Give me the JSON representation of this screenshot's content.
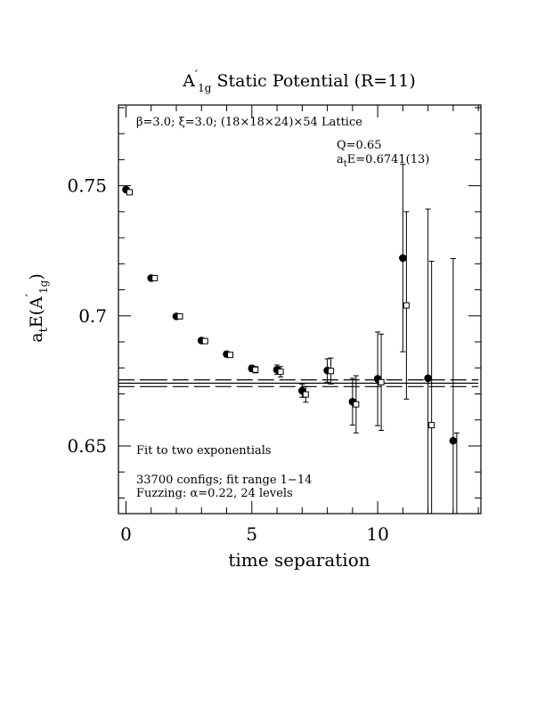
{
  "chart_data": {
    "type": "scatter",
    "title_main": "A",
    "title_prime": "′",
    "title_sub": "1g",
    "title_rest": " Static Potential (R=11)",
    "ylabel_main": "a",
    "ylabel_sub": "t",
    "ylabel_mid": "E(A",
    "ylabel_prime": "′",
    "ylabel_sub2": "1g",
    "ylabel_end": ")",
    "xlabel": "time separation",
    "xlim": [
      -0.3,
      14.1
    ],
    "ylim": [
      0.624,
      0.781
    ],
    "x_ticks": [
      0,
      5,
      10
    ],
    "x_tick_labels": [
      "0",
      "5",
      "10"
    ],
    "y_ticks": [
      0.65,
      0.7,
      0.75
    ],
    "y_tick_labels": [
      "0.65",
      "0.7",
      "0.75"
    ],
    "annotations": {
      "lattice": "β=3.0; ξ=3.0; (18×18×24)×54 Lattice",
      "q_value": "Q=0.65",
      "energy_main": "a",
      "energy_sub": "t",
      "energy_rest": "E=0.6741(13)",
      "fit_note": "Fit to two exponentials",
      "configs": "33700 configs; fit range 1−14",
      "fuzzing": "Fuzzing: α=0.22, 24 levels"
    },
    "series": [
      {
        "marker": "filled-circle",
        "points": [
          {
            "x": 0,
            "y": 0.7485,
            "err": 0.0004
          },
          {
            "x": 1,
            "y": 0.7145,
            "err": 0.0004
          },
          {
            "x": 2,
            "y": 0.6998,
            "err": 0.0005
          },
          {
            "x": 3,
            "y": 0.6905,
            "err": 0.0006
          },
          {
            "x": 4,
            "y": 0.6853,
            "err": 0.0008
          },
          {
            "x": 5,
            "y": 0.6798,
            "err": 0.0012
          },
          {
            "x": 6,
            "y": 0.6793,
            "err": 0.0018
          },
          {
            "x": 7,
            "y": 0.6712,
            "err": 0.0025
          },
          {
            "x": 8,
            "y": 0.679,
            "err": 0.0045
          },
          {
            "x": 9,
            "y": 0.667,
            "err": 0.009
          },
          {
            "x": 10,
            "y": 0.6758,
            "err": 0.018
          },
          {
            "x": 11,
            "y": 0.7222,
            "err": 0.036
          },
          {
            "x": 12,
            "y": 0.676,
            "err": 0.065
          },
          {
            "x": 13,
            "y": 0.652,
            "err": 0.07
          }
        ]
      },
      {
        "marker": "open-square",
        "points": [
          {
            "x": 0,
            "y": 0.7475,
            "err": 0.0004
          },
          {
            "x": 1,
            "y": 0.7145,
            "err": 0.0004
          },
          {
            "x": 2,
            "y": 0.6998,
            "err": 0.0005
          },
          {
            "x": 3,
            "y": 0.6903,
            "err": 0.0006
          },
          {
            "x": 4,
            "y": 0.685,
            "err": 0.0008
          },
          {
            "x": 5,
            "y": 0.6793,
            "err": 0.0012
          },
          {
            "x": 6,
            "y": 0.6785,
            "err": 0.002
          },
          {
            "x": 7,
            "y": 0.6698,
            "err": 0.003
          },
          {
            "x": 8,
            "y": 0.6788,
            "err": 0.005
          },
          {
            "x": 9,
            "y": 0.666,
            "err": 0.011
          },
          {
            "x": 10,
            "y": 0.6745,
            "err": 0.0185
          },
          {
            "x": 11,
            "y": 0.704,
            "err": 0.036
          },
          {
            "x": 12,
            "y": 0.658,
            "err": 0.063
          },
          {
            "x": 13,
            "y": 0.62,
            "err": 0.035
          }
        ]
      }
    ],
    "fit": {
      "value": 0.6741,
      "error": 0.0013,
      "x_range": [
        1,
        14
      ],
      "extrapolated_x_start": -0.3
    }
  }
}
